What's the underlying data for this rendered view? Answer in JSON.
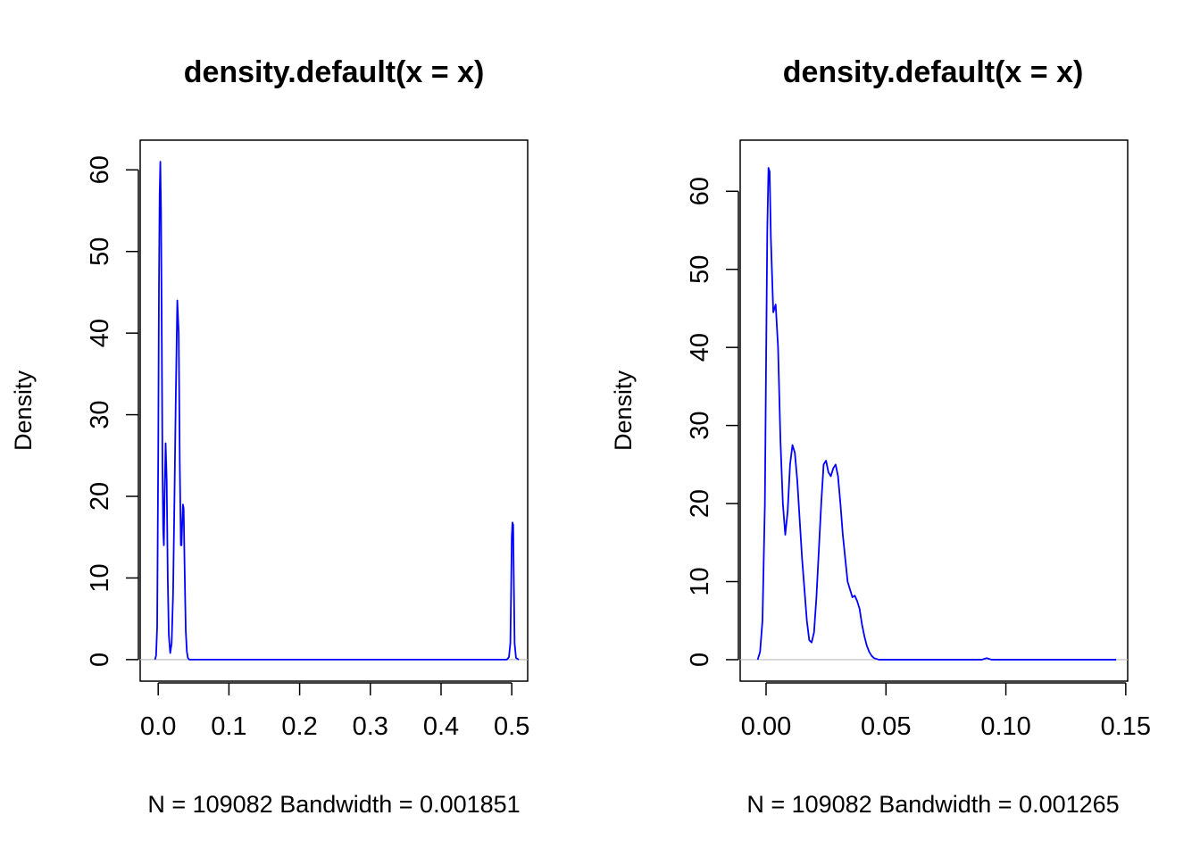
{
  "colors": {
    "line": "#0000ff",
    "zero_line": "#bebebe",
    "axis": "#000000",
    "background": "#ffffff"
  },
  "chart_data": [
    {
      "type": "line",
      "title": "density.default(x = x)",
      "xlabel": "N = 109082   Bandwidth = 0.001851",
      "ylabel": "Density",
      "xlim": [
        -0.0255,
        0.5225
      ],
      "ylim": [
        -2.64,
        63.64
      ],
      "x_ticks": [
        0.0,
        0.1,
        0.2,
        0.3,
        0.4,
        0.5
      ],
      "x_tick_labels": [
        "0.0",
        "0.1",
        "0.2",
        "0.3",
        "0.4",
        "0.5"
      ],
      "y_ticks": [
        0,
        10,
        20,
        30,
        40,
        50,
        60
      ],
      "y_tick_labels": [
        "0",
        "10",
        "20",
        "30",
        "40",
        "50",
        "60"
      ],
      "grid": false,
      "legend": "none",
      "series": [
        {
          "x": [
            -0.0045,
            -0.003,
            -0.0015,
            0.0,
            0.001,
            0.002,
            0.003,
            0.004,
            0.005,
            0.006,
            0.007,
            0.008,
            0.009,
            0.0105,
            0.012,
            0.0135,
            0.015,
            0.017,
            0.019,
            0.021,
            0.023,
            0.025,
            0.027,
            0.029,
            0.0305,
            0.032,
            0.033,
            0.034,
            0.035,
            0.036,
            0.037,
            0.038,
            0.039,
            0.0405,
            0.042,
            0.044,
            0.047,
            0.05,
            0.1,
            0.2,
            0.3,
            0.4,
            0.48,
            0.493,
            0.496,
            0.498,
            0.499,
            0.5,
            0.501,
            0.502,
            0.503,
            0.504,
            0.506,
            0.51
          ],
          "y": [
            0,
            0.5,
            4,
            25,
            45,
            57,
            61,
            55,
            40,
            24,
            16,
            14,
            20,
            26.5,
            22,
            10,
            3,
            0.8,
            2,
            8,
            20,
            33,
            44,
            40,
            24,
            14,
            14,
            17,
            19,
            18.5,
            13,
            8,
            3.5,
            1,
            0.2,
            0,
            0,
            0,
            0,
            0,
            0,
            0,
            0,
            0,
            0.3,
            2,
            8,
            15,
            16.8,
            16.5,
            9,
            2,
            0.2,
            0
          ]
        }
      ]
    },
    {
      "type": "line",
      "title": "density.default(x = x)",
      "xlabel": "N = 109082   Bandwidth = 0.001265",
      "ylabel": "Density",
      "xlim": [
        -0.0108,
        0.1508
      ],
      "ylim": [
        -2.75,
        66.55
      ],
      "x_ticks": [
        0.0,
        0.05,
        0.1,
        0.15
      ],
      "x_tick_labels": [
        "0.00",
        "0.05",
        "0.10",
        "0.15"
      ],
      "y_ticks": [
        0,
        10,
        20,
        30,
        40,
        50,
        60
      ],
      "y_tick_labels": [
        "0",
        "10",
        "20",
        "30",
        "40",
        "50",
        "60"
      ],
      "grid": false,
      "legend": "none",
      "series": [
        {
          "x": [
            -0.0035,
            -0.0025,
            -0.0015,
            -0.0005,
            0.0,
            0.0005,
            0.001,
            0.0015,
            0.002,
            0.003,
            0.004,
            0.005,
            0.006,
            0.007,
            0.008,
            0.009,
            0.01,
            0.011,
            0.012,
            0.013,
            0.014,
            0.015,
            0.016,
            0.017,
            0.018,
            0.019,
            0.02,
            0.021,
            0.022,
            0.023,
            0.024,
            0.025,
            0.026,
            0.027,
            0.028,
            0.029,
            0.03,
            0.031,
            0.032,
            0.033,
            0.034,
            0.035,
            0.036,
            0.037,
            0.038,
            0.039,
            0.04,
            0.041,
            0.042,
            0.043,
            0.044,
            0.045,
            0.046,
            0.047,
            0.048,
            0.049,
            0.05,
            0.052,
            0.055,
            0.06,
            0.08,
            0.09,
            0.092,
            0.094,
            0.1,
            0.12,
            0.146
          ],
          "y": [
            0,
            1,
            5,
            20,
            38,
            55,
            63,
            62.5,
            54,
            44.5,
            45.5,
            40,
            28,
            20,
            16,
            19,
            25,
            27.5,
            26.5,
            23,
            18,
            13,
            9,
            5,
            2.5,
            2.2,
            3.5,
            8,
            14,
            20,
            25,
            25.5,
            24,
            23.5,
            24.5,
            25,
            23.5,
            20,
            16,
            13,
            10,
            9,
            8,
            8.2,
            7.5,
            6.5,
            4.5,
            3,
            1.8,
            1,
            0.5,
            0.2,
            0.1,
            0,
            0,
            0,
            0,
            0,
            0,
            0,
            0,
            0,
            0.2,
            0,
            0,
            0,
            0
          ]
        }
      ]
    }
  ]
}
